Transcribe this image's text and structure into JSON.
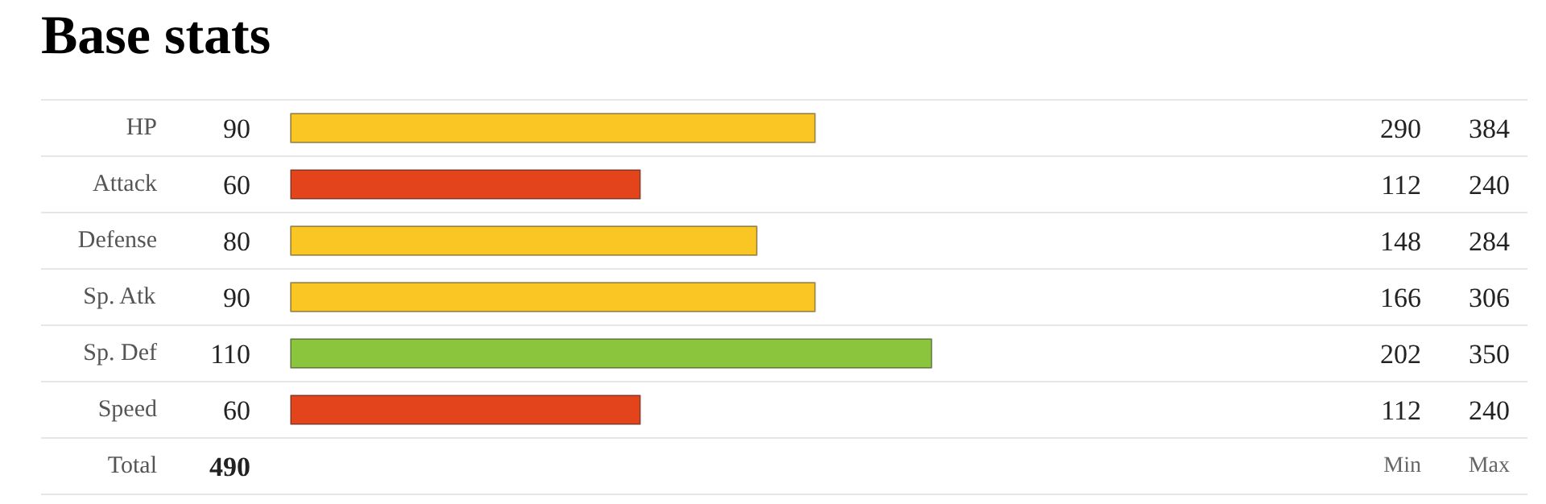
{
  "chart_data": {
    "type": "bar",
    "orientation": "horizontal",
    "title": "Base stats",
    "categories": [
      "HP",
      "Attack",
      "Defense",
      "Sp. Atk",
      "Sp. Def",
      "Speed"
    ],
    "values": [
      90,
      60,
      80,
      90,
      110,
      60
    ],
    "colors": [
      "#f9c623",
      "#e3441c",
      "#f9c623",
      "#f9c623",
      "#8bc43d",
      "#e3441c"
    ],
    "data_labels": true,
    "annotations": [
      "Total",
      "490",
      "Min",
      "Max",
      "290",
      "384",
      "112",
      "240",
      "148",
      "284",
      "166",
      "306",
      "202",
      "350",
      "112",
      "240"
    ]
  }
}
